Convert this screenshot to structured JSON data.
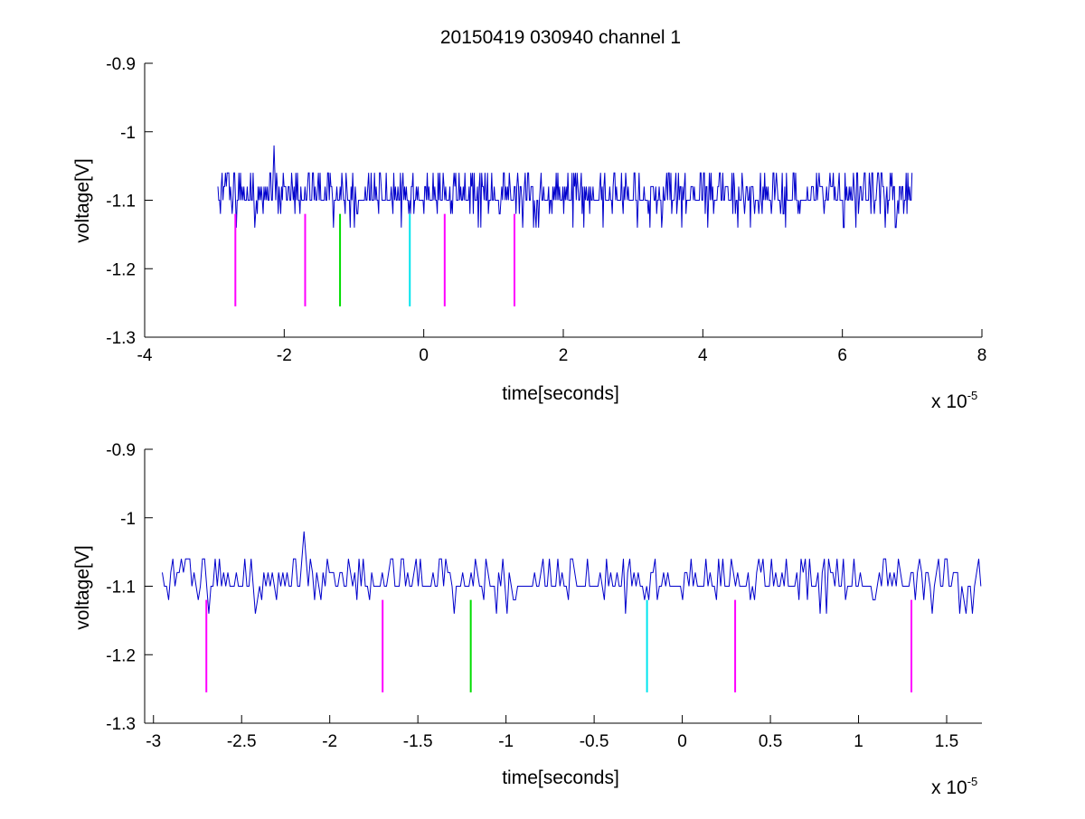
{
  "title": "20150419 030940 channel 1",
  "colors": {
    "signal": "#0000cc",
    "marker_magenta": "#ff00ff",
    "marker_green": "#00dd00",
    "marker_cyan": "#00e5ee",
    "axis": "#000000"
  },
  "chart_data": [
    {
      "type": "line",
      "title": "20150419 030940 channel 1",
      "xlabel": "time[seconds]",
      "ylabel": "voltage[V]",
      "x_exponent_base": "x 10",
      "x_exponent_power": "-5",
      "xlim": [
        -4,
        8
      ],
      "ylim": [
        -1.3,
        -0.9
      ],
      "xticks": [
        -4,
        -2,
        0,
        2,
        4,
        6,
        8
      ],
      "xtick_labels": [
        "-4",
        "-2",
        "0",
        "2",
        "4",
        "6",
        "8"
      ],
      "yticks": [
        -1.3,
        -1.2,
        -1.1,
        -1,
        -0.9
      ],
      "ytick_labels": [
        "-1.3",
        "-1.2",
        "-1.1",
        "-1",
        "-0.9"
      ],
      "grid": false,
      "signal": {
        "x_start": -2.95,
        "x_end": 7.0,
        "baseline": -1.1,
        "levels": [
          -1.14,
          -1.12,
          -1.1,
          -1.08,
          -1.06
        ],
        "peak": {
          "x": -2.15,
          "y": -1.02
        }
      },
      "markers": [
        {
          "x": -2.7,
          "y_top": -1.12,
          "y_bottom": -1.255,
          "color": "magenta"
        },
        {
          "x": -1.7,
          "y_top": -1.12,
          "y_bottom": -1.255,
          "color": "magenta"
        },
        {
          "x": -1.2,
          "y_top": -1.12,
          "y_bottom": -1.255,
          "color": "green"
        },
        {
          "x": -0.2,
          "y_top": -1.12,
          "y_bottom": -1.255,
          "color": "cyan"
        },
        {
          "x": 0.3,
          "y_top": -1.12,
          "y_bottom": -1.255,
          "color": "magenta"
        },
        {
          "x": 1.3,
          "y_top": -1.12,
          "y_bottom": -1.255,
          "color": "magenta"
        }
      ]
    },
    {
      "type": "line",
      "xlabel": "time[seconds]",
      "ylabel": "voltage[V]",
      "x_exponent_base": "x 10",
      "x_exponent_power": "-5",
      "xlim": [
        -3.05,
        1.7
      ],
      "ylim": [
        -1.3,
        -0.9
      ],
      "xticks": [
        -3,
        -2.5,
        -2,
        -1.5,
        -1,
        -0.5,
        0,
        0.5,
        1,
        1.5
      ],
      "xtick_labels": [
        "-3",
        "-2.5",
        "-2",
        "-1.5",
        "-1",
        "-0.5",
        "0",
        "0.5",
        "1",
        "1.5"
      ],
      "yticks": [
        -1.3,
        -1.2,
        -1.1,
        -1,
        -0.9
      ],
      "ytick_labels": [
        "-1.3",
        "-1.2",
        "-1.1",
        "-1",
        "-0.9"
      ],
      "grid": false,
      "signal": {
        "x_start": -2.95,
        "x_end": 1.7,
        "baseline": -1.1,
        "levels": [
          -1.14,
          -1.12,
          -1.1,
          -1.08,
          -1.06
        ],
        "peak": {
          "x": -2.15,
          "y": -1.02
        }
      },
      "markers": [
        {
          "x": -2.7,
          "y_top": -1.12,
          "y_bottom": -1.255,
          "color": "magenta"
        },
        {
          "x": -1.7,
          "y_top": -1.12,
          "y_bottom": -1.255,
          "color": "magenta"
        },
        {
          "x": -1.2,
          "y_top": -1.12,
          "y_bottom": -1.255,
          "color": "green"
        },
        {
          "x": -0.2,
          "y_top": -1.12,
          "y_bottom": -1.255,
          "color": "cyan"
        },
        {
          "x": 0.3,
          "y_top": -1.12,
          "y_bottom": -1.255,
          "color": "magenta"
        },
        {
          "x": 1.3,
          "y_top": -1.12,
          "y_bottom": -1.255,
          "color": "magenta"
        }
      ]
    }
  ]
}
